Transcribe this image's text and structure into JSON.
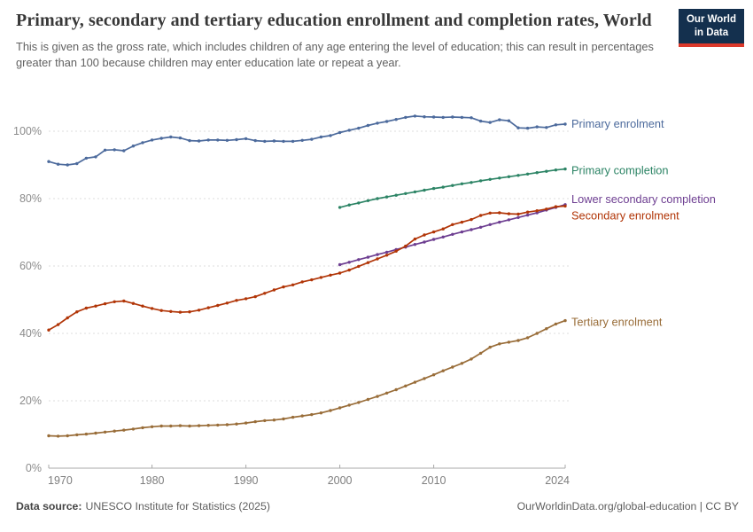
{
  "header": {
    "title": "Primary, secondary and tertiary education enrollment and completion rates, World",
    "subtitle": "This is given as the gross rate, which includes children of any age entering the level of education; this can result in percentages greater than 100 because children may enter education late or repeat a year.",
    "logo": {
      "line1": "Our World",
      "line2": "in Data"
    }
  },
  "footer": {
    "source_label": "Data source:",
    "source_text": "UNESCO Institute for Statistics (2025)",
    "credit": "OurWorldinData.org/global-education | CC BY"
  },
  "chart_data": {
    "type": "line",
    "title": "Primary, secondary and tertiary education enrollment and completion rates, World",
    "xlabel": "",
    "ylabel": "",
    "x_range": [
      1969,
      2024
    ],
    "ylim": [
      0,
      107
    ],
    "grid": "horizontal dashed",
    "legend_position": "right-of-line-ends",
    "x_ticks": [
      1970,
      1980,
      1990,
      2000,
      2010,
      2024
    ],
    "y_ticks": [
      {
        "value": 0,
        "label": "0%"
      },
      {
        "value": 20,
        "label": "20%"
      },
      {
        "value": 40,
        "label": "40%"
      },
      {
        "value": 60,
        "label": "60%"
      },
      {
        "value": 80,
        "label": "80%"
      },
      {
        "value": 100,
        "label": "100%"
      }
    ],
    "colors": {
      "primary_enrolment": "#4C6A9C",
      "primary_completion": "#2C8465",
      "lower_secondary_completion": "#6D3E91",
      "secondary_enrolment": "#B13507",
      "tertiary_enrolment": "#996D39"
    },
    "series": [
      {
        "name": "Primary enrolment",
        "color": "#4C6A9C",
        "start_year": 1969,
        "label_dy": 0,
        "values": [
          91.0,
          90.2,
          90.0,
          90.4,
          92.0,
          92.4,
          94.4,
          94.5,
          94.2,
          95.6,
          96.6,
          97.4,
          97.9,
          98.3,
          98.0,
          97.2,
          97.1,
          97.4,
          97.4,
          97.3,
          97.5,
          97.8,
          97.2,
          97.0,
          97.1,
          97.0,
          97.0,
          97.3,
          97.6,
          98.3,
          98.7,
          99.6,
          100.3,
          100.9,
          101.7,
          102.4,
          102.9,
          103.5,
          104.1,
          104.5,
          104.3,
          104.2,
          104.1,
          104.2,
          104.1,
          104.0,
          103.0,
          102.6,
          103.4,
          103.1,
          101.0,
          100.9,
          101.3,
          101.1,
          101.9,
          102.1
        ]
      },
      {
        "name": "Primary completion",
        "color": "#2C8465",
        "start_year": 2000,
        "label_dy": 2,
        "values": [
          77.4,
          78.1,
          78.7,
          79.4,
          80.0,
          80.5,
          81.0,
          81.5,
          82.0,
          82.5,
          83.0,
          83.4,
          83.9,
          84.4,
          84.8,
          85.3,
          85.7,
          86.1,
          86.5,
          86.9,
          87.3,
          87.7,
          88.1,
          88.5,
          88.8
        ]
      },
      {
        "name": "Lower secondary completion",
        "color": "#6D3E91",
        "start_year": 2000,
        "label_dy": -6,
        "values": [
          60.4,
          61.1,
          61.9,
          62.6,
          63.4,
          64.1,
          64.9,
          65.6,
          66.4,
          67.1,
          67.9,
          68.6,
          69.4,
          70.1,
          70.8,
          71.5,
          72.3,
          73.0,
          73.7,
          74.4,
          75.1,
          75.8,
          76.6,
          77.4,
          78.2
        ]
      },
      {
        "name": "Secondary enrolment",
        "color": "#B13507",
        "start_year": 1969,
        "label_dy": 11,
        "values": [
          41.0,
          42.6,
          44.6,
          46.4,
          47.5,
          48.1,
          48.8,
          49.4,
          49.6,
          48.9,
          48.1,
          47.4,
          46.8,
          46.5,
          46.3,
          46.4,
          46.9,
          47.6,
          48.3,
          49.0,
          49.8,
          50.3,
          50.9,
          51.9,
          52.9,
          53.8,
          54.4,
          55.3,
          55.9,
          56.6,
          57.3,
          57.9,
          58.8,
          59.9,
          61.0,
          62.1,
          63.2,
          64.4,
          65.9,
          68.0,
          69.2,
          70.1,
          71.0,
          72.3,
          73.0,
          73.8,
          75.0,
          75.7,
          75.8,
          75.5,
          75.4,
          76.0,
          76.4,
          76.9,
          77.6,
          77.8
        ]
      },
      {
        "name": "Tertiary enrolment",
        "color": "#996D39",
        "start_year": 1969,
        "label_dy": 2,
        "values": [
          9.6,
          9.5,
          9.6,
          9.9,
          10.1,
          10.4,
          10.7,
          11.0,
          11.3,
          11.6,
          12.0,
          12.3,
          12.5,
          12.5,
          12.6,
          12.5,
          12.6,
          12.7,
          12.8,
          12.9,
          13.1,
          13.4,
          13.8,
          14.1,
          14.3,
          14.6,
          15.1,
          15.5,
          15.9,
          16.4,
          17.1,
          17.9,
          18.7,
          19.5,
          20.4,
          21.3,
          22.3,
          23.3,
          24.4,
          25.5,
          26.6,
          27.7,
          28.9,
          30.0,
          31.1,
          32.4,
          34.1,
          35.9,
          36.9,
          37.4,
          37.9,
          38.7,
          40.0,
          41.4,
          42.8,
          43.8
        ]
      }
    ]
  }
}
